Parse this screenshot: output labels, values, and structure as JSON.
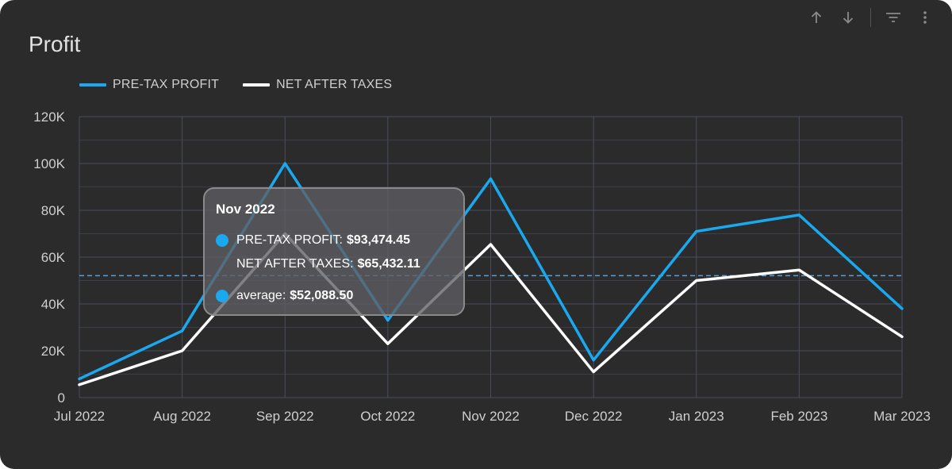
{
  "card": {
    "title": "Profit"
  },
  "toolbar": {
    "icons": [
      "arrow-up-icon",
      "arrow-down-icon",
      "filter-icon",
      "more-vert-icon"
    ]
  },
  "colors": {
    "background": "#2b2b2b",
    "pretax": "#1aa8ee",
    "net": "#ffffff",
    "average": "#5aa0d6",
    "grid": "#4a4d5c"
  },
  "chart_data": {
    "type": "line",
    "categories": [
      "Jul 2022",
      "Aug 2022",
      "Sep 2022",
      "Oct 2022",
      "Nov 2022",
      "Dec 2022",
      "Jan 2023",
      "Feb 2023",
      "Mar 2023"
    ],
    "series": [
      {
        "name": "PRE-TAX PROFIT",
        "values": [
          8000,
          28500,
          100000,
          33000,
          93474.45,
          16000,
          71000,
          78000,
          38000
        ]
      },
      {
        "name": "NET AFTER TAXES",
        "values": [
          5500,
          20000,
          70000,
          23000,
          65432.11,
          11000,
          50000,
          54500,
          26000
        ]
      }
    ],
    "average": 52088.5,
    "yticks": [
      "0",
      "20K",
      "40K",
      "60K",
      "80K",
      "100K",
      "120K"
    ],
    "ylim": [
      0,
      120000
    ],
    "grid": true,
    "legend_position": "top-left"
  },
  "tooltip": {
    "date": "Nov 2022",
    "pretax_label": "PRE-TAX PROFIT:",
    "pretax_value": "$93,474.45",
    "net_label": "NET AFTER TAXES:",
    "net_value": "$65,432.11",
    "avg_label": "average:",
    "avg_value": "$52,088.50"
  }
}
